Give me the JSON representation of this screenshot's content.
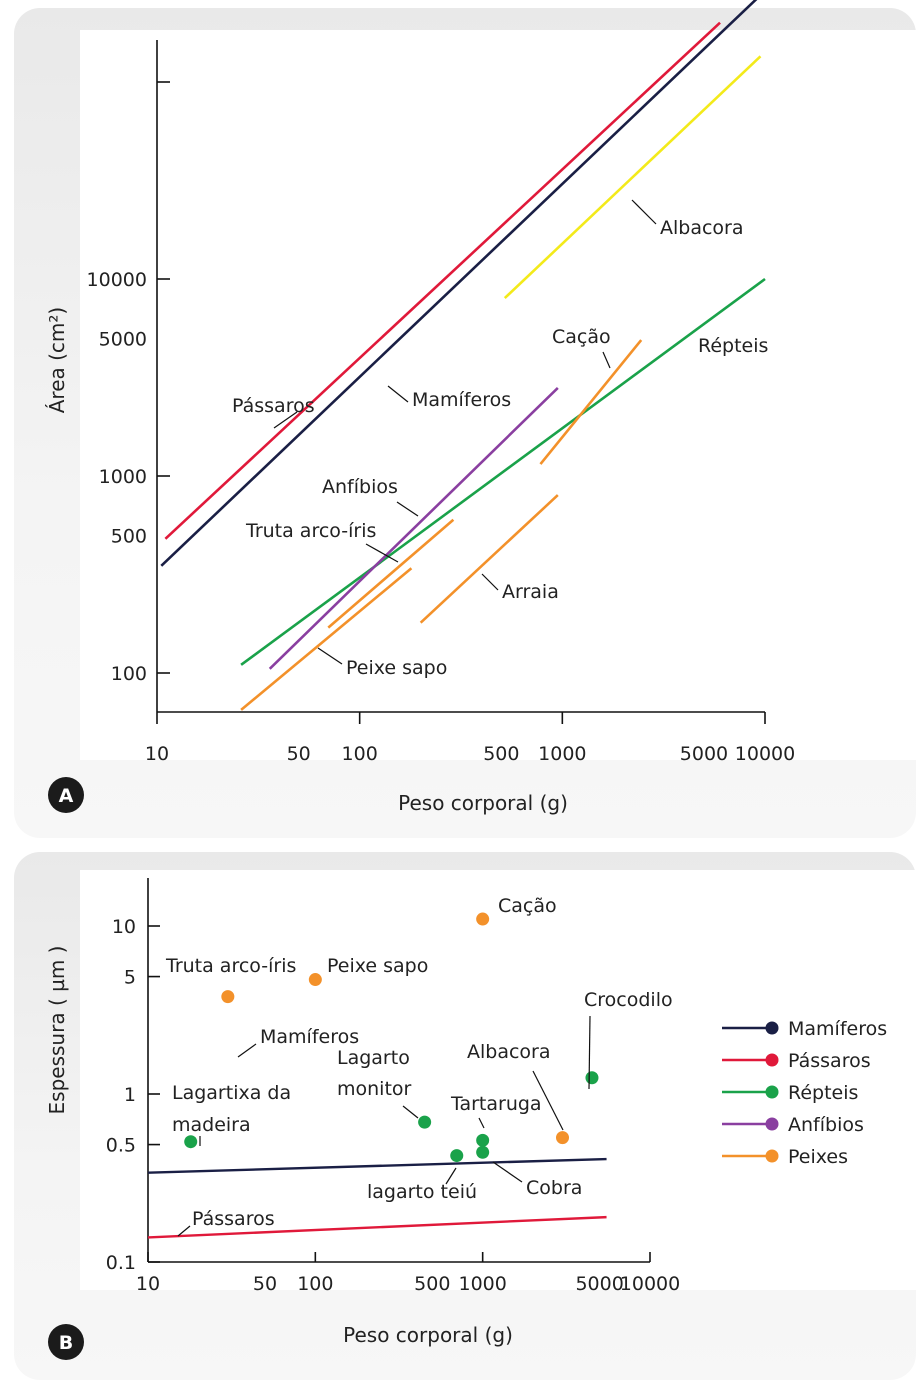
{
  "chart_data": [
    {
      "panel": "A",
      "type": "line",
      "xscale": "log",
      "yscale": "log",
      "xlabel": "Peso corporal (g)",
      "ylabel": "Área (cm²)",
      "x_ticks": [
        10,
        50,
        100,
        500,
        1000,
        5000,
        10000
      ],
      "x_tick_labels": [
        "10",
        "50",
        "100",
        "500",
        "1000",
        "5000",
        "10000"
      ],
      "y_ticks": [
        100,
        500,
        1000,
        5000,
        10000
      ],
      "y_tick_labels": [
        "100",
        "500",
        "1000",
        "5000",
        "10000"
      ],
      "xlim": [
        10,
        10000
      ],
      "ylim": [
        50,
        500000
      ],
      "series": [
        {
          "name": "Pássaros",
          "color": "#e0193a",
          "x": [
            11,
            6000
          ],
          "y": [
            480,
            200000
          ]
        },
        {
          "name": "Mamíferos",
          "color": "#1a1f45",
          "x": [
            10.5,
            10000
          ],
          "y": [
            350,
            290000
          ]
        },
        {
          "name": "Albacora",
          "color": "#f3ea1a",
          "x": [
            520,
            9500
          ],
          "y": [
            8000,
            135000
          ]
        },
        {
          "name": "Répteis",
          "color": "#1aa24a",
          "x": [
            26,
            10000
          ],
          "y": [
            110,
            10000
          ]
        },
        {
          "name": "Anfíbios",
          "color": "#8a3fa0",
          "x": [
            36,
            950
          ],
          "y": [
            105,
            2800
          ]
        },
        {
          "name": "Cação",
          "color": "#f3912a",
          "x": [
            780,
            2450
          ],
          "y": [
            1150,
            4900
          ]
        },
        {
          "name": "Truta arco-íris",
          "color": "#f3912a",
          "x": [
            70,
            290
          ],
          "y": [
            170,
            600
          ]
        },
        {
          "name": "Peixe sapo",
          "color": "#f3912a",
          "x": [
            26,
            180
          ],
          "y": [
            65,
            340
          ]
        },
        {
          "name": "Arraia",
          "color": "#f3912a",
          "x": [
            200,
            950
          ],
          "y": [
            180,
            800
          ]
        }
      ],
      "annotations": [
        "Albacora",
        "Cação",
        "Répteis",
        "Pássaros",
        "Mamíferos",
        "Anfíbios",
        "Truta arco-íris",
        "Arraia",
        "Peixe sapo"
      ],
      "panel_letter": "A"
    },
    {
      "panel": "B",
      "type": "scatter",
      "xscale": "log",
      "yscale": "log",
      "xlabel": "Peso corporal (g)",
      "ylabel": "Espessura ( µm )",
      "x_ticks": [
        10,
        50,
        100,
        500,
        1000,
        5000,
        10000
      ],
      "x_tick_labels": [
        "10",
        "50",
        "100",
        "500",
        "1000",
        "5000",
        "10000"
      ],
      "y_ticks": [
        0.1,
        0.5,
        1,
        5,
        10
      ],
      "y_tick_labels": [
        "0.1",
        "0.5",
        "1",
        "5",
        "10"
      ],
      "xlim": [
        10,
        10000
      ],
      "ylim": [
        0.1,
        20
      ],
      "points": [
        {
          "label": "Cação",
          "group": "Peixes",
          "x": 1000,
          "y": 11
        },
        {
          "label": "Truta arco-íris",
          "group": "Peixes",
          "x": 30,
          "y": 3.8
        },
        {
          "label": "Peixe sapo",
          "group": "Peixes",
          "x": 100,
          "y": 4.8
        },
        {
          "label": "Albacora",
          "group": "Peixes",
          "x": 3000,
          "y": 0.55
        },
        {
          "label": "Crocodilo",
          "group": "Répteis",
          "x": 4500,
          "y": 1.25
        },
        {
          "label": "Lagartixa da madeira",
          "group": "Répteis",
          "x": 18,
          "y": 0.52
        },
        {
          "label": "Lagarto monitor",
          "group": "Répteis",
          "x": 450,
          "y": 0.68
        },
        {
          "label": "Tartaruga",
          "group": "Répteis",
          "x": 1000,
          "y": 0.53
        },
        {
          "label": "Cobra",
          "group": "Répteis",
          "x": 1000,
          "y": 0.45
        },
        {
          "label": "lagarto teiú",
          "group": "Répteis",
          "x": 700,
          "y": 0.43
        }
      ],
      "lines": [
        {
          "name": "Mamíferos",
          "color": "#1a1f45",
          "x": [
            10,
            5500
          ],
          "y": [
            0.34,
            0.41
          ]
        },
        {
          "name": "Pássaros",
          "color": "#e0193a",
          "x": [
            10,
            5500
          ],
          "y": [
            0.14,
            0.185
          ]
        }
      ],
      "legend": {
        "position": "right",
        "items": [
          {
            "name": "Mamíferos",
            "color": "#1a1f45"
          },
          {
            "name": "Pássaros",
            "color": "#e0193a"
          },
          {
            "name": "Répteis",
            "color": "#1aa24a"
          },
          {
            "name": "Anfíbios",
            "color": "#8a3fa0"
          },
          {
            "name": "Peixes",
            "color": "#f3912a"
          }
        ]
      },
      "panel_letter": "B"
    }
  ]
}
